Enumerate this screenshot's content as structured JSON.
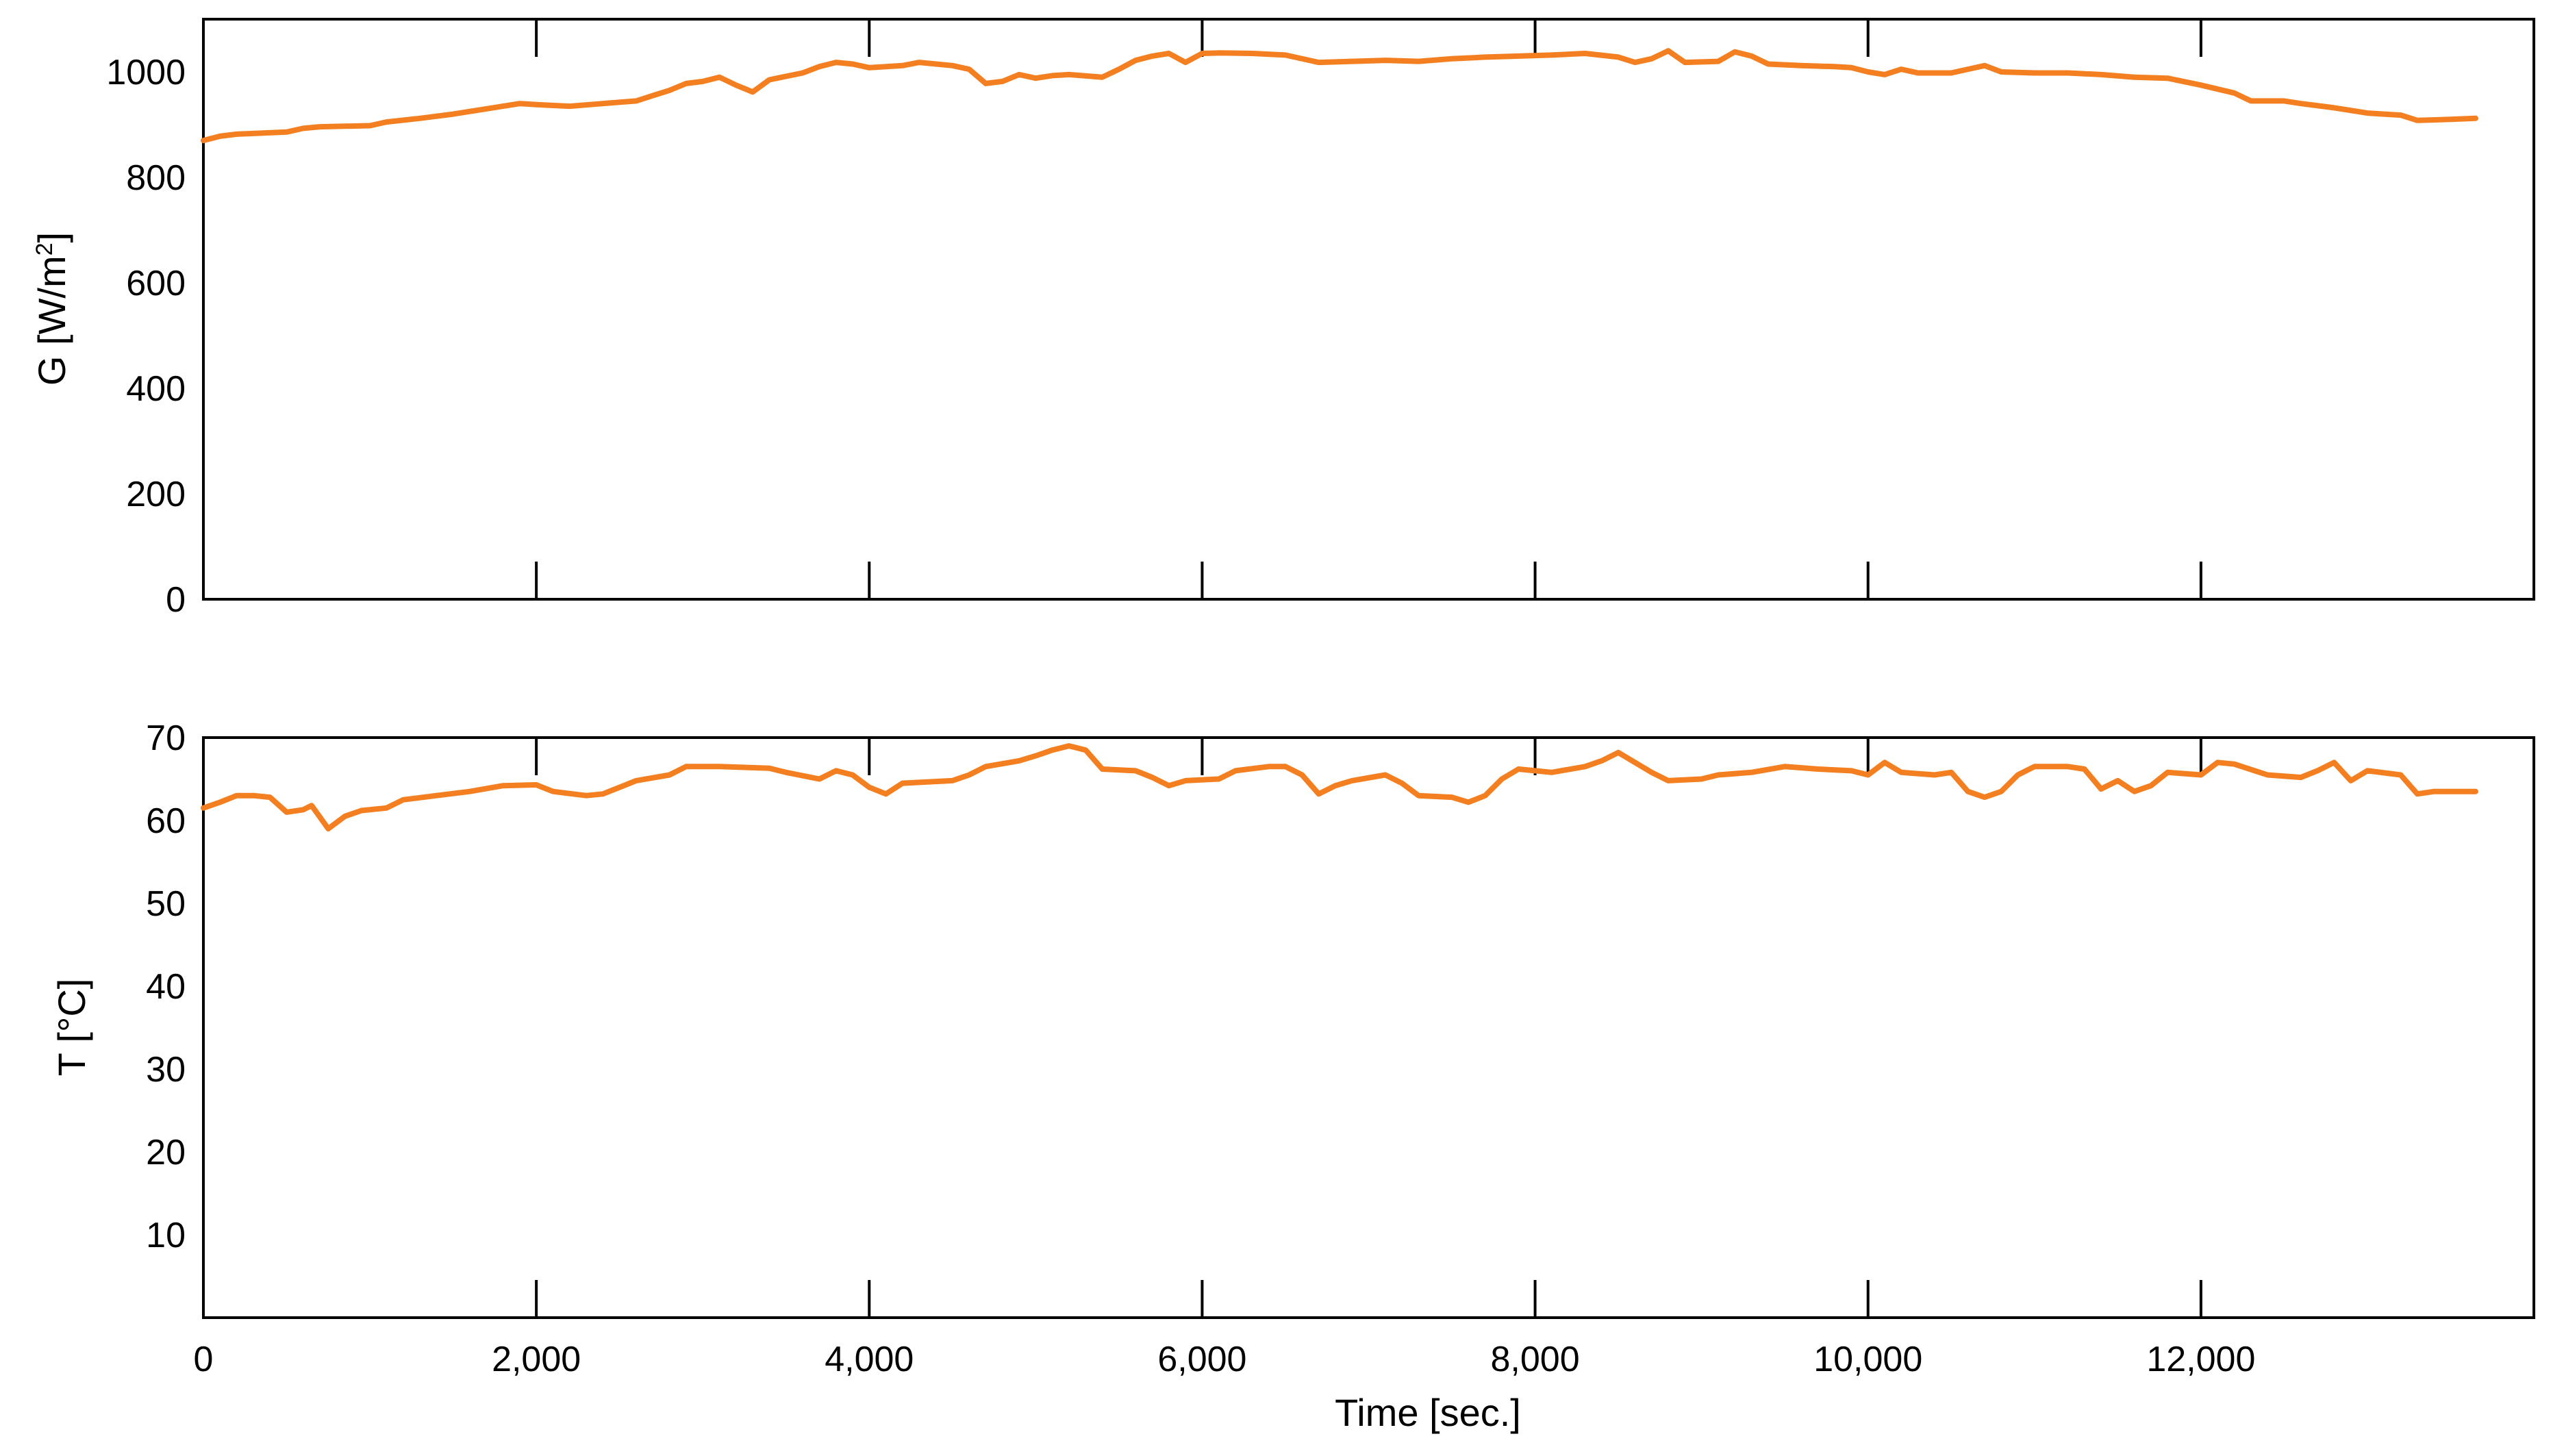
{
  "chart_data": [
    {
      "type": "line",
      "ylabel": "G [W/m²]",
      "ylabel_parts": {
        "main": "G [W/m",
        "sup": "2",
        "close": "]"
      },
      "xlim": [
        0,
        14000
      ],
      "ylim": [
        0,
        1100
      ],
      "yticks": [
        0,
        200,
        400,
        600,
        800,
        1000
      ],
      "xticks": [
        0,
        2000,
        4000,
        6000,
        8000,
        10000,
        12000
      ],
      "show_x_tick_labels": false,
      "series": [
        {
          "color": "#F47F20",
          "points": [
            [
              0,
              870
            ],
            [
              100,
              878
            ],
            [
              200,
              882
            ],
            [
              500,
              886
            ],
            [
              600,
              893
            ],
            [
              700,
              896
            ],
            [
              1000,
              898
            ],
            [
              1100,
              905
            ],
            [
              1300,
              912
            ],
            [
              1500,
              920
            ],
            [
              1700,
              930
            ],
            [
              1800,
              935
            ],
            [
              1900,
              940
            ],
            [
              2000,
              938
            ],
            [
              2200,
              935
            ],
            [
              2400,
              940
            ],
            [
              2600,
              945
            ],
            [
              2700,
              955
            ],
            [
              2800,
              965
            ],
            [
              2900,
              978
            ],
            [
              3000,
              982
            ],
            [
              3100,
              990
            ],
            [
              3200,
              975
            ],
            [
              3300,
              962
            ],
            [
              3400,
              985
            ],
            [
              3600,
              998
            ],
            [
              3700,
              1010
            ],
            [
              3800,
              1018
            ],
            [
              3900,
              1015
            ],
            [
              4000,
              1008
            ],
            [
              4200,
              1012
            ],
            [
              4300,
              1018
            ],
            [
              4500,
              1012
            ],
            [
              4600,
              1005
            ],
            [
              4700,
              978
            ],
            [
              4800,
              982
            ],
            [
              4900,
              995
            ],
            [
              5000,
              988
            ],
            [
              5100,
              993
            ],
            [
              5200,
              995
            ],
            [
              5400,
              990
            ],
            [
              5500,
              1005
            ],
            [
              5600,
              1022
            ],
            [
              5700,
              1030
            ],
            [
              5800,
              1035
            ],
            [
              5900,
              1018
            ],
            [
              6000,
              1035
            ],
            [
              6100,
              1036
            ],
            [
              6300,
              1035
            ],
            [
              6500,
              1032
            ],
            [
              6700,
              1018
            ],
            [
              6900,
              1020
            ],
            [
              7100,
              1022
            ],
            [
              7300,
              1020
            ],
            [
              7500,
              1025
            ],
            [
              7700,
              1028
            ],
            [
              7900,
              1030
            ],
            [
              8100,
              1032
            ],
            [
              8300,
              1035
            ],
            [
              8500,
              1028
            ],
            [
              8600,
              1018
            ],
            [
              8700,
              1025
            ],
            [
              8800,
              1040
            ],
            [
              8900,
              1018
            ],
            [
              9100,
              1020
            ],
            [
              9200,
              1038
            ],
            [
              9300,
              1030
            ],
            [
              9400,
              1015
            ],
            [
              9600,
              1012
            ],
            [
              9800,
              1010
            ],
            [
              9900,
              1008
            ],
            [
              10000,
              1000
            ],
            [
              10100,
              995
            ],
            [
              10200,
              1005
            ],
            [
              10300,
              998
            ],
            [
              10500,
              998
            ],
            [
              10600,
              1005
            ],
            [
              10700,
              1012
            ],
            [
              10800,
              1000
            ],
            [
              11000,
              998
            ],
            [
              11200,
              998
            ],
            [
              11400,
              995
            ],
            [
              11600,
              990
            ],
            [
              11800,
              988
            ],
            [
              12000,
              975
            ],
            [
              12200,
              960
            ],
            [
              12300,
              945
            ],
            [
              12500,
              945
            ],
            [
              12600,
              940
            ],
            [
              12800,
              932
            ],
            [
              13000,
              922
            ],
            [
              13200,
              918
            ],
            [
              13300,
              908
            ],
            [
              13500,
              910
            ],
            [
              13650,
              912
            ]
          ]
        }
      ]
    },
    {
      "type": "line",
      "xlabel": "Time [sec.]",
      "ylabel": "T [°C]",
      "xlim": [
        0,
        14000
      ],
      "ylim": [
        0,
        70
      ],
      "yticks": [
        10,
        20,
        30,
        40,
        50,
        60,
        70
      ],
      "xticks": [
        0,
        2000,
        4000,
        6000,
        8000,
        10000,
        12000
      ],
      "xtick_labels": [
        "0",
        "2,000",
        "4,000",
        "6,000",
        "8,000",
        "10,000",
        "12,000"
      ],
      "show_x_tick_labels": true,
      "series": [
        {
          "color": "#F47F20",
          "points": [
            [
              0,
              61.5
            ],
            [
              100,
              62.2
            ],
            [
              200,
              63
            ],
            [
              300,
              63
            ],
            [
              400,
              62.8
            ],
            [
              500,
              61
            ],
            [
              600,
              61.3
            ],
            [
              650,
              61.8
            ],
            [
              750,
              59
            ],
            [
              850,
              60.5
            ],
            [
              950,
              61.2
            ],
            [
              1100,
              61.5
            ],
            [
              1200,
              62.5
            ],
            [
              1400,
              63
            ],
            [
              1600,
              63.5
            ],
            [
              1800,
              64.2
            ],
            [
              2000,
              64.3
            ],
            [
              2100,
              63.5
            ],
            [
              2300,
              63
            ],
            [
              2400,
              63.2
            ],
            [
              2500,
              64
            ],
            [
              2600,
              64.8
            ],
            [
              2800,
              65.5
            ],
            [
              2900,
              66.5
            ],
            [
              3100,
              66.5
            ],
            [
              3400,
              66.3
            ],
            [
              3500,
              65.8
            ],
            [
              3700,
              65
            ],
            [
              3800,
              66
            ],
            [
              3900,
              65.5
            ],
            [
              4000,
              64
            ],
            [
              4100,
              63.2
            ],
            [
              4200,
              64.5
            ],
            [
              4500,
              64.8
            ],
            [
              4600,
              65.5
            ],
            [
              4700,
              66.5
            ],
            [
              4900,
              67.2
            ],
            [
              5000,
              67.8
            ],
            [
              5100,
              68.5
            ],
            [
              5200,
              69
            ],
            [
              5300,
              68.5
            ],
            [
              5400,
              66.2
            ],
            [
              5600,
              66
            ],
            [
              5700,
              65.2
            ],
            [
              5800,
              64.2
            ],
            [
              5900,
              64.8
            ],
            [
              6100,
              65
            ],
            [
              6200,
              66
            ],
            [
              6400,
              66.5
            ],
            [
              6500,
              66.5
            ],
            [
              6600,
              65.5
            ],
            [
              6700,
              63.2
            ],
            [
              6800,
              64.2
            ],
            [
              6900,
              64.8
            ],
            [
              7100,
              65.5
            ],
            [
              7200,
              64.5
            ],
            [
              7300,
              63
            ],
            [
              7500,
              62.8
            ],
            [
              7600,
              62.2
            ],
            [
              7700,
              63
            ],
            [
              7800,
              65
            ],
            [
              7900,
              66.2
            ],
            [
              8000,
              66
            ],
            [
              8100,
              65.8
            ],
            [
              8300,
              66.5
            ],
            [
              8400,
              67.2
            ],
            [
              8500,
              68.2
            ],
            [
              8600,
              67
            ],
            [
              8700,
              65.8
            ],
            [
              8800,
              64.8
            ],
            [
              9000,
              65
            ],
            [
              9100,
              65.5
            ],
            [
              9300,
              65.8
            ],
            [
              9500,
              66.5
            ],
            [
              9700,
              66.2
            ],
            [
              9900,
              66
            ],
            [
              10000,
              65.5
            ],
            [
              10100,
              67
            ],
            [
              10200,
              65.8
            ],
            [
              10400,
              65.5
            ],
            [
              10500,
              65.8
            ],
            [
              10600,
              63.5
            ],
            [
              10700,
              62.8
            ],
            [
              10800,
              63.5
            ],
            [
              10900,
              65.5
            ],
            [
              11000,
              66.5
            ],
            [
              11200,
              66.5
            ],
            [
              11300,
              66.2
            ],
            [
              11400,
              63.8
            ],
            [
              11500,
              64.8
            ],
            [
              11600,
              63.5
            ],
            [
              11700,
              64.2
            ],
            [
              11800,
              65.8
            ],
            [
              12000,
              65.5
            ],
            [
              12100,
              67
            ],
            [
              12200,
              66.8
            ],
            [
              12400,
              65.5
            ],
            [
              12600,
              65.2
            ],
            [
              12700,
              66
            ],
            [
              12800,
              67
            ],
            [
              12900,
              64.8
            ],
            [
              13000,
              66
            ],
            [
              13200,
              65.5
            ],
            [
              13300,
              63.2
            ],
            [
              13400,
              63.5
            ],
            [
              13650,
              63.5
            ]
          ]
        }
      ]
    }
  ]
}
